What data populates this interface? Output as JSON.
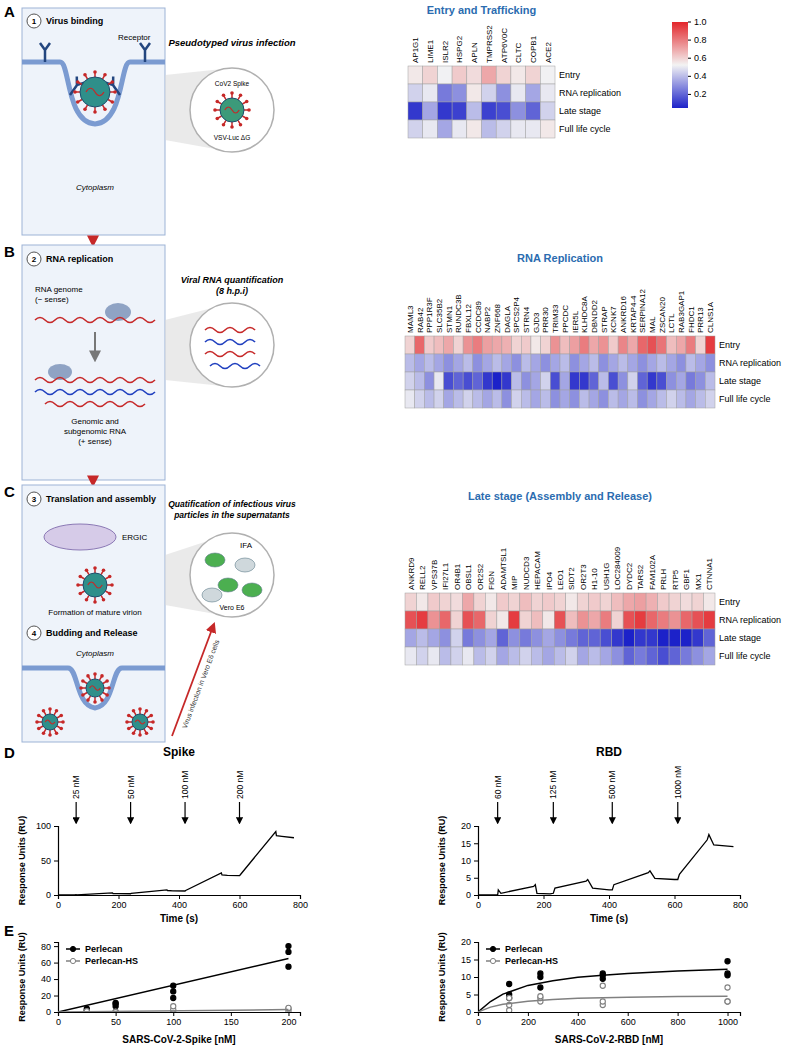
{
  "diagram": {
    "panel_labels": [
      "A",
      "B",
      "C",
      "D",
      "E"
    ],
    "A": {
      "step": "1",
      "step_title": "Virus binding",
      "receptor": "Receptor",
      "cytoplasm": "Cytoplasm",
      "assay_title": "Pseudotyped virus infection",
      "icon_labels": [
        "CoV2 Spike",
        "VSV-Luc ΔG"
      ]
    },
    "B": {
      "step": "2",
      "step_title": "RNA replication",
      "rna_minus": [
        "RNA genome",
        "(− sense)"
      ],
      "rna_plus": [
        "Genomic and",
        "subgenomic RNA",
        "(+ sense)"
      ],
      "assay_title": [
        "Viral RNA quantification",
        "(8 h.p.i)"
      ]
    },
    "C": {
      "steps": [
        {
          "step": "3",
          "title": "Translation and assembly"
        },
        {
          "step": "4",
          "title": "Budding and Release"
        }
      ],
      "ergic": "ERGIC",
      "virion": "Formation of mature virion",
      "cytoplasm": "Cytoplasm",
      "assay_title": [
        "Quatification of infectious virus",
        "particles in the supernatants"
      ],
      "icon_labels": [
        "IFA",
        "Vero E6"
      ],
      "arrow_label": "Virus infection in Vero E6 cells"
    }
  },
  "chart_data": [
    {
      "type": "heatmap",
      "title": "Entry and Trafficking",
      "x_categories": [
        "AP1G1",
        "LIME1",
        "ISLR2",
        "HSPG2",
        "APLN",
        "TMPRSS2",
        "ATP6V0C",
        "CLTC",
        "COPB1",
        "ACE2"
      ],
      "y_categories": [
        "Entry",
        "RNA replication",
        "Late stage",
        "Full life cycle"
      ],
      "cells": [
        [
          0.55,
          0.6,
          0.52,
          0.62,
          0.58,
          0.7,
          0.6,
          0.55,
          0.6,
          0.52
        ],
        [
          0.45,
          0.5,
          0.25,
          0.3,
          0.55,
          0.45,
          0.3,
          0.5,
          0.35,
          0.5
        ],
        [
          0.1,
          0.35,
          0.1,
          0.12,
          0.4,
          0.12,
          0.15,
          0.3,
          0.2,
          0.45
        ],
        [
          0.45,
          0.5,
          0.35,
          0.5,
          0.55,
          0.4,
          0.45,
          0.5,
          0.5,
          0.55
        ]
      ],
      "colorbar": {
        "range": [
          0.05,
          1.0
        ],
        "ticks": [
          {
            "value": 1,
            "label": "1.0"
          },
          0.8,
          0.6,
          0.4,
          0.2
        ]
      }
    },
    {
      "type": "heatmap",
      "title": "RNA Replication",
      "x_categories": [
        "MAML3",
        "RAB42",
        "PPP1R3F",
        "SLC35B2",
        "STMN1",
        "RUNDC3B",
        "FBXL12",
        "CCDC89",
        "NABP2",
        "ZNF668",
        "DAGLA",
        "SPCS2P4",
        "STRN4",
        "GJD3",
        "PRR30",
        "TRIM33",
        "PPCDC",
        "IER5L",
        "KLHDC8A",
        "DBNDD2",
        "STRAP",
        "KCNK7",
        "ANKRD16",
        "KRTAP4-4",
        "SERPINA12",
        "MAL",
        "ZSCAN20",
        "LCTL",
        "RAB3GAP1",
        "FHDC1",
        "PRR13",
        "CLNS1A"
      ],
      "y_categories": [
        "Entry",
        "RNA replication",
        "Late stage",
        "Full life cycle"
      ],
      "cells": [
        [
          0.6,
          0.85,
          0.62,
          0.65,
          0.7,
          0.6,
          0.75,
          0.8,
          0.72,
          0.7,
          0.68,
          0.6,
          0.62,
          0.55,
          0.6,
          0.75,
          0.65,
          0.72,
          0.8,
          0.7,
          0.75,
          0.62,
          0.78,
          0.7,
          0.85,
          0.9,
          0.82,
          0.65,
          0.7,
          0.8,
          0.6,
          0.95
        ],
        [
          0.4,
          0.35,
          0.4,
          0.35,
          0.3,
          0.35,
          0.4,
          0.3,
          0.35,
          0.4,
          0.35,
          0.3,
          0.4,
          0.35,
          0.3,
          0.35,
          0.4,
          0.3,
          0.35,
          0.4,
          0.3,
          0.35,
          0.4,
          0.35,
          0.3,
          0.35,
          0.4,
          0.35,
          0.3,
          0.4,
          0.35,
          0.3
        ],
        [
          0.45,
          0.4,
          0.3,
          0.5,
          0.15,
          0.2,
          0.15,
          0.2,
          0.1,
          0.05,
          0.1,
          0.4,
          0.3,
          0.35,
          0.45,
          0.15,
          0.35,
          0.1,
          0.1,
          0.2,
          0.4,
          0.15,
          0.3,
          0.45,
          0.2,
          0.1,
          0.15,
          0.3,
          0.35,
          0.25,
          0.3,
          0.4
        ],
        [
          0.5,
          0.45,
          0.4,
          0.45,
          0.35,
          0.4,
          0.45,
          0.4,
          0.35,
          0.4,
          0.3,
          0.45,
          0.4,
          0.35,
          0.4,
          0.3,
          0.35,
          0.3,
          0.4,
          0.35,
          0.3,
          0.4,
          0.35,
          0.4,
          0.3,
          0.35,
          0.4,
          0.45,
          0.4,
          0.35,
          0.4,
          0.45
        ]
      ]
    },
    {
      "type": "heatmap",
      "title": "Late stage (Assembly and Release)",
      "x_categories": [
        "ANKRD9",
        "RELL2",
        "VPS37B",
        "IFI27L1",
        "OR4B1",
        "OBSL1",
        "OR2S2",
        "FIGN",
        "ADAMTSL1",
        "MIP",
        "NUDCD3",
        "HEPACAM",
        "IPO4",
        "LEO1",
        "SIDT2",
        "OR2T3",
        "H1-10",
        "USH1G",
        "LOC284009",
        "DYDC2",
        "TARS2",
        "FAM102A",
        "PRLH",
        "RTP5",
        "GBF1",
        "MX1",
        "CTNNA1"
      ],
      "y_categories": [
        "Entry",
        "RNA replication",
        "Late stage",
        "Full life cycle"
      ],
      "cells": [
        [
          0.6,
          0.55,
          0.62,
          0.6,
          0.58,
          0.7,
          0.6,
          0.55,
          0.62,
          0.6,
          0.65,
          0.6,
          0.62,
          0.6,
          0.55,
          0.6,
          0.62,
          0.6,
          0.65,
          0.7,
          0.72,
          0.68,
          0.62,
          0.6,
          0.58,
          0.6,
          0.55
        ],
        [
          0.9,
          0.95,
          0.75,
          0.85,
          0.6,
          0.9,
          0.85,
          0.6,
          0.55,
          0.95,
          0.6,
          0.65,
          0.55,
          0.9,
          0.65,
          0.75,
          0.7,
          0.8,
          0.6,
          0.9,
          0.95,
          0.85,
          0.8,
          0.75,
          0.85,
          0.9,
          0.95
        ],
        [
          0.35,
          0.4,
          0.35,
          0.3,
          0.45,
          0.25,
          0.3,
          0.35,
          0.2,
          0.3,
          0.25,
          0.3,
          0.35,
          0.3,
          0.25,
          0.2,
          0.2,
          0.15,
          0.1,
          0.05,
          0.1,
          0.1,
          0.05,
          0.05,
          0.05,
          0.1,
          0.2
        ],
        [
          0.5,
          0.45,
          0.5,
          0.4,
          0.45,
          0.5,
          0.4,
          0.45,
          0.35,
          0.4,
          0.45,
          0.4,
          0.35,
          0.4,
          0.45,
          0.35,
          0.4,
          0.35,
          0.3,
          0.2,
          0.25,
          0.2,
          0.15,
          0.2,
          0.25,
          0.3,
          0.35
        ]
      ]
    },
    {
      "type": "line",
      "title": "Spike",
      "x_label": "Time (s)",
      "y_label": "Response Units (RU)",
      "x": [
        0,
        55,
        60,
        62,
        180,
        182,
        200,
        240,
        242,
        360,
        362,
        380,
        420,
        422,
        540,
        542,
        560,
        600,
        602,
        720,
        722,
        740,
        780
      ],
      "values": [
        0,
        0,
        0.5,
        0.3,
        3,
        2.2,
        2,
        1.8,
        2.5,
        7.5,
        6.5,
        6,
        5.8,
        6.5,
        32,
        29,
        28.5,
        28,
        29,
        92,
        86,
        85,
        83
      ],
      "color": "#000000",
      "xlim": [
        0,
        800
      ],
      "xticks": [
        0,
        200,
        400,
        600,
        800
      ],
      "ylim": [
        0,
        100
      ],
      "yticks": [
        0,
        50,
        100
      ],
      "annotations": [
        {
          "x": 60,
          "text": "25 nM"
        },
        {
          "x": 240,
          "text": "50 nM"
        },
        {
          "x": 420,
          "text": "100 nM"
        },
        {
          "x": 600,
          "text": "200 nM"
        }
      ]
    },
    {
      "type": "line",
      "title": "RBD",
      "x_label": "Time (s)",
      "y_label": "Response Units (RU)",
      "x": [
        0,
        60,
        62,
        70,
        170,
        175,
        180,
        220,
        230,
        235,
        330,
        335,
        350,
        400,
        410,
        415,
        520,
        525,
        540,
        600,
        610,
        615,
        700,
        705,
        720,
        780
      ],
      "values": [
        0,
        0,
        1.5,
        0.5,
        2.5,
        3,
        0.5,
        0.3,
        0.5,
        2,
        4,
        4.5,
        2,
        1.5,
        1.5,
        3,
        6.5,
        7,
        4.8,
        4.5,
        4.5,
        6,
        16,
        17.5,
        14.5,
        14
      ],
      "color": "#000000",
      "xlim": [
        0,
        800
      ],
      "xticks": [
        0,
        200,
        400,
        600,
        800
      ],
      "ylim": [
        0,
        20
      ],
      "yticks": [
        0,
        5,
        10,
        15,
        20
      ],
      "annotations": [
        {
          "x": 60,
          "text": "60 nM"
        },
        {
          "x": 230,
          "text": "125 nM"
        },
        {
          "x": 410,
          "text": "500 nM"
        },
        {
          "x": 610,
          "text": "1000 nM"
        }
      ]
    },
    {
      "type": "scatter",
      "x_label": "SARS-CoV-2-Spike [nM]",
      "y_label": "Response Units (RU)",
      "xlim": [
        0,
        210
      ],
      "xticks": [
        0,
        50,
        100,
        150,
        200
      ],
      "ylim": [
        0,
        85
      ],
      "yticks": [
        0,
        20,
        40,
        60,
        80
      ],
      "legend": "upper-left",
      "series": [
        {
          "name": "Perlecan",
          "color": "#000000",
          "marker": "filled-circle",
          "x": [
            25,
            25,
            25,
            50,
            50,
            50,
            100,
            100,
            100,
            200,
            200,
            200
          ],
          "values": [
            2,
            4,
            0.5,
            7,
            10,
            11,
            17,
            25,
            32,
            55,
            73,
            80
          ]
        },
        {
          "name": "Perlecan-HS",
          "color": "#808080",
          "marker": "open-circle",
          "x": [
            25,
            25,
            25,
            50,
            50,
            50,
            100,
            100,
            100,
            200,
            200,
            200
          ],
          "values": [
            0,
            0,
            1,
            0,
            0.5,
            0,
            1,
            3,
            7,
            1.5,
            4,
            5
          ]
        },
        {
          "type": "line",
          "color": "#000000",
          "x": [
            0,
            200
          ],
          "values": [
            0,
            65
          ]
        },
        {
          "type": "line",
          "color": "#808080",
          "x": [
            0,
            200
          ],
          "values": [
            0,
            3
          ]
        }
      ]
    },
    {
      "type": "scatter",
      "x_label": "SARS-CoV-2-RBD [nM]",
      "y_label": "Response Units (RU)",
      "xlim": [
        0,
        1050
      ],
      "xticks": [
        0,
        200,
        400,
        600,
        800,
        1000
      ],
      "ylim": [
        0,
        20
      ],
      "yticks": [
        0,
        5,
        10,
        15,
        20
      ],
      "legend": "upper-left",
      "series": [
        {
          "name": "Perlecan",
          "color": "#000000",
          "marker": "filled-circle",
          "x": [
            125,
            125,
            125,
            250,
            250,
            250,
            500,
            500,
            500,
            1000,
            1000,
            1000
          ],
          "values": [
            4,
            8,
            5,
            7,
            11,
            10,
            9.5,
            10.5,
            11,
            10.5,
            11,
            14.5
          ]
        },
        {
          "name": "Perlecan-HS",
          "color": "#808080",
          "marker": "open-circle",
          "x": [
            125,
            125,
            125,
            250,
            250,
            250,
            500,
            500,
            500,
            1000,
            1000,
            1000
          ],
          "values": [
            0.5,
            2,
            4,
            3,
            4,
            4.5,
            2,
            3,
            7.5,
            3,
            3,
            7
          ]
        },
        {
          "type": "line",
          "color": "#000000",
          "x": [
            0,
            50,
            100,
            200,
            300,
            400,
            500,
            600,
            800,
            1000
          ],
          "values": [
            0,
            3,
            5.1,
            7.6,
            8.9,
            9.9,
            10.5,
            11,
            11.7,
            12.2
          ]
        },
        {
          "type": "line",
          "color": "#808080",
          "x": [
            0,
            50,
            100,
            200,
            300,
            400,
            500,
            600,
            800,
            1000
          ],
          "values": [
            0,
            1.4,
            2.2,
            3.1,
            3.6,
            3.9,
            4.1,
            4.2,
            4.4,
            4.5
          ]
        }
      ]
    }
  ]
}
